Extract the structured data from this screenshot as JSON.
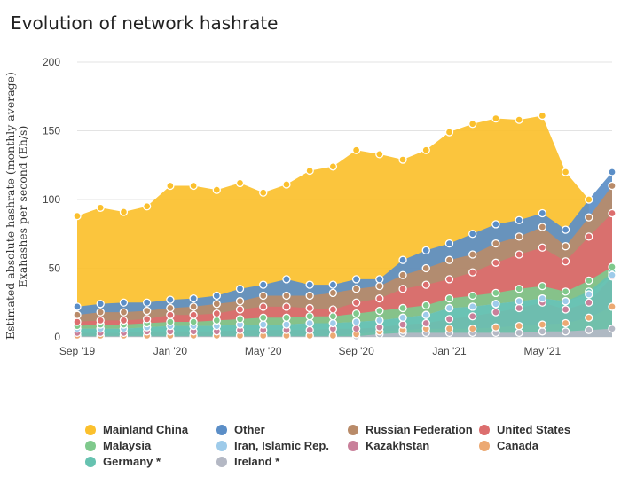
{
  "title": "Evolution of network hashrate",
  "chart_data": {
    "type": "area",
    "stacked": true,
    "title": "",
    "ylabel_lines": [
      "Estimated absolute hashrate (monthly average)",
      "Exahashes per second (Eh/s)"
    ],
    "xlabel": "",
    "ylim": [
      0,
      200
    ],
    "yticks": [
      "0",
      "50",
      "100",
      "150",
      "200"
    ],
    "x_tick_labels": [
      {
        "index": 0,
        "label": "Sep '19"
      },
      {
        "index": 4,
        "label": "Jan '20"
      },
      {
        "index": 8,
        "label": "May '20"
      },
      {
        "index": 12,
        "label": "Sep '20"
      },
      {
        "index": 16,
        "label": "Jan '21"
      },
      {
        "index": 20,
        "label": "May '21"
      }
    ],
    "x": [
      "2019-09",
      "2019-10",
      "2019-11",
      "2019-12",
      "2020-01",
      "2020-02",
      "2020-03",
      "2020-04",
      "2020-05",
      "2020-06",
      "2020-07",
      "2020-08",
      "2020-09",
      "2020-10",
      "2020-11",
      "2020-12",
      "2021-01",
      "2021-02",
      "2021-03",
      "2021-04",
      "2021-05",
      "2021-06",
      "2021-07",
      "2021-08"
    ],
    "grid": true,
    "legend_position": "bottom",
    "cumulative_totals": {
      "Ireland *": [
        0.5,
        0.5,
        0.5,
        0.5,
        0.5,
        0.5,
        0.5,
        0.5,
        0.5,
        0.5,
        0.5,
        0.5,
        0.5,
        2,
        3,
        3,
        3,
        3,
        3,
        3,
        4,
        4,
        5,
        6
      ],
      "Canada": [
        1,
        1,
        1,
        1,
        1,
        1,
        1,
        1,
        1,
        1,
        1,
        1,
        2,
        4,
        5,
        6,
        6,
        6,
        7,
        8,
        9,
        10,
        14,
        22
      ],
      "Kazakhstan": [
        3,
        3,
        3,
        4,
        4,
        4,
        4,
        5,
        5,
        5,
        5,
        6,
        6,
        7,
        9,
        10,
        13,
        15,
        18,
        21,
        25,
        20,
        25,
        44
      ],
      "Iran, Islamic Rep.": [
        6,
        6,
        6,
        7,
        8,
        8,
        8,
        9,
        9,
        9,
        10,
        10,
        11,
        12,
        14,
        16,
        21,
        22,
        24,
        26,
        28,
        26,
        31,
        45
      ],
      "Germany *": [
        6,
        6,
        6,
        7,
        8,
        8,
        8,
        9,
        9,
        9,
        10,
        10,
        11,
        12,
        14,
        16,
        21,
        22,
        24,
        26,
        28,
        26,
        33,
        47
      ],
      "Malaysia": [
        8,
        9,
        9,
        10,
        11,
        11,
        12,
        13,
        14,
        14,
        15,
        15,
        17,
        19,
        21,
        23,
        28,
        30,
        32,
        35,
        37,
        33,
        41,
        51
      ],
      "United States": [
        11,
        12,
        12,
        13,
        16,
        16,
        17,
        20,
        22,
        22,
        21,
        20,
        25,
        28,
        35,
        38,
        42,
        47,
        54,
        60,
        65,
        55,
        73,
        90
      ],
      "Russian Federation": [
        16,
        18,
        18,
        19,
        21,
        22,
        24,
        26,
        30,
        30,
        30,
        32,
        35,
        37,
        45,
        50,
        56,
        60,
        68,
        73,
        80,
        66,
        87,
        110
      ],
      "Other": [
        22,
        24,
        25,
        25,
        27,
        28,
        30,
        35,
        38,
        42,
        38,
        38,
        42,
        42,
        56,
        63,
        68,
        75,
        82,
        85,
        90,
        78,
        100,
        120
      ],
      "Mainland China": [
        88,
        94,
        91,
        95,
        110,
        110,
        107,
        112,
        105,
        111,
        121,
        124,
        136,
        133,
        129,
        136,
        149,
        155,
        159,
        158,
        161,
        120,
        100,
        null
      ]
    },
    "series": [
      {
        "name": "Mainland China",
        "color": "#fbc02d"
      },
      {
        "name": "Other",
        "color": "#5b8ec7"
      },
      {
        "name": "Russian Federation",
        "color": "#b98b69"
      },
      {
        "name": "United States",
        "color": "#dc6e6e"
      },
      {
        "name": "Malaysia",
        "color": "#7fc98c"
      },
      {
        "name": "Iran, Islamic Rep.",
        "color": "#9ecbea"
      },
      {
        "name": "Kazakhstan",
        "color": "#c9809a"
      },
      {
        "name": "Canada",
        "color": "#eca973"
      },
      {
        "name": "Germany *",
        "color": "#66c2b0"
      },
      {
        "name": "Ireland *",
        "color": "#b4b8c4"
      }
    ]
  },
  "legend": [
    {
      "name": "Mainland China",
      "color": "#fbc02d"
    },
    {
      "name": "Other",
      "color": "#5b8ec7"
    },
    {
      "name": "Russian Federation",
      "color": "#b98b69"
    },
    {
      "name": "United States",
      "color": "#dc6e6e"
    },
    {
      "name": "Malaysia",
      "color": "#7fc98c"
    },
    {
      "name": "Iran, Islamic Rep.",
      "color": "#9ecbea"
    },
    {
      "name": "Kazakhstan",
      "color": "#c9809a"
    },
    {
      "name": "Canada",
      "color": "#eca973"
    },
    {
      "name": "Germany *",
      "color": "#66c2b0"
    },
    {
      "name": "Ireland *",
      "color": "#b4b8c4"
    }
  ]
}
